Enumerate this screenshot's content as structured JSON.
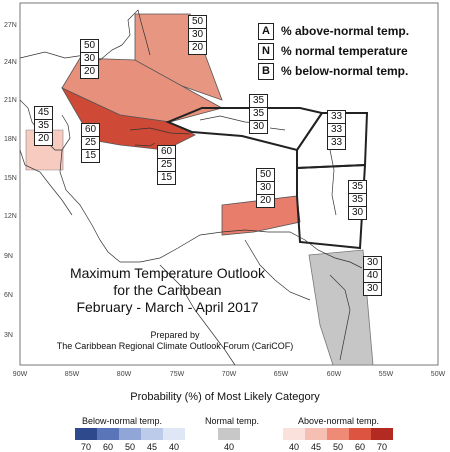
{
  "map": {
    "lat_ticks": [
      "27N",
      "24N",
      "21N",
      "18N",
      "15N",
      "12N",
      "9N",
      "6N",
      "3N"
    ],
    "lon_ticks": [
      "90W",
      "85W",
      "80W",
      "75W",
      "70W",
      "65W",
      "60W",
      "55W",
      "50W"
    ]
  },
  "legend": [
    {
      "letter": "A",
      "text": "% above-normal temp."
    },
    {
      "letter": "N",
      "text": "% normal temperature"
    },
    {
      "letter": "B",
      "text": "% below-normal temp."
    }
  ],
  "boxes": {
    "florida": [
      "50",
      "30",
      "20"
    ],
    "gulf": [
      "50",
      "30",
      "20"
    ],
    "yucatan": [
      "45",
      "35",
      "20"
    ],
    "cuba": [
      "60",
      "25",
      "15"
    ],
    "jamaica": [
      "60",
      "25",
      "15"
    ],
    "hispaniola": [
      "35",
      "35",
      "30"
    ],
    "leewards": [
      "33",
      "33",
      "33"
    ],
    "windwards": [
      "35",
      "35",
      "30"
    ],
    "colombia": [
      "50",
      "30",
      "20"
    ],
    "guianas": [
      "30",
      "40",
      "30"
    ]
  },
  "title": {
    "line1": "Maximum Temperature Outlook",
    "line2": "for the Caribbean",
    "line3": "February - March - April 2017"
  },
  "prepared": {
    "line1": "Prepared by",
    "line2": "The Caribbean Regional Climate Outlook Forum (CariCOF)"
  },
  "colorbar": {
    "title": "Probability (%) of Most Likely Category",
    "below_label": "Below-normal temp.",
    "normal_label": "Normal temp.",
    "above_label": "Above-normal temp.",
    "below": [
      {
        "value": "70",
        "color": "#2e4a8c"
      },
      {
        "value": "60",
        "color": "#5a76b8"
      },
      {
        "value": "50",
        "color": "#8fa6d6"
      },
      {
        "value": "45",
        "color": "#bccbe9"
      },
      {
        "value": "40",
        "color": "#dfe6f5"
      }
    ],
    "normal": [
      {
        "value": "40",
        "color": "#c8c8c8"
      }
    ],
    "above": [
      {
        "value": "40",
        "color": "#fbe1dc"
      },
      {
        "value": "45",
        "color": "#f6bfb4"
      },
      {
        "value": "50",
        "color": "#ee8a76"
      },
      {
        "value": "60",
        "color": "#dd5540"
      },
      {
        "value": "70",
        "color": "#b22a22"
      }
    ]
  }
}
